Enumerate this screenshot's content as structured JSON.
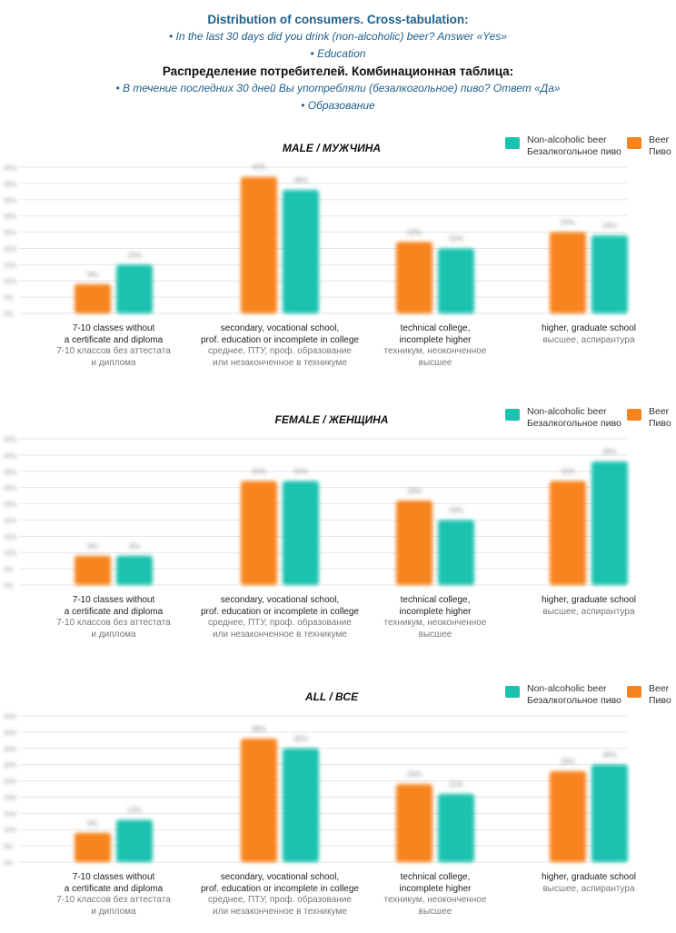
{
  "header": {
    "title_en": "Distribution of consumers. Cross-tabulation:",
    "q1_en": "• In the last 30 days did you drink (non-alcoholic) beer? Answer «Yes»",
    "q2_en": "• Education",
    "title_ru": "Распределение потребителей. Комбинационная таблица:",
    "q1_ru": "• В течение последних 30 дней Вы употребляли (безалкогольное) пиво? Ответ «Да»",
    "q2_ru": "• Образование"
  },
  "colors": {
    "beer": "#f7841e",
    "nonalc": "#1bc2b0",
    "grid": "#e6e6e6"
  },
  "legend": {
    "nonalc_en": "Non-alcoholic beer",
    "nonalc_ru": "Безалкогольное пиво",
    "beer_en": "Beer",
    "beer_ru": "Пиво"
  },
  "categories": [
    {
      "en1": "7-10 classes without",
      "en2": "a certificate and diploma",
      "ru1": "7-10 классов без аттестата",
      "ru2": "и диплома"
    },
    {
      "en1": "secondary, vocational school,",
      "en2": "prof. education or incomplete in college",
      "ru1": "среднее, ПТУ, проф. образование",
      "ru2": "или незаконченное в техникуме"
    },
    {
      "en1": "technical college,",
      "en2": "incomplete higher",
      "ru1": "техникум, неоконченное",
      "ru2": "высшее"
    },
    {
      "en1": "higher, graduate school",
      "en2": "",
      "ru1": "высшее, аспирантура",
      "ru2": ""
    }
  ],
  "chart_data": [
    {
      "type": "bar",
      "title": "MALE / МУЖЧИНА",
      "categories": [
        "7-10 classes without a certificate and diploma",
        "secondary, vocational school, prof. education or incomplete in college",
        "technical college, incomplete higher",
        "higher, graduate school"
      ],
      "series": [
        {
          "name": "Beer / Пиво",
          "values": [
            9,
            42,
            22,
            25
          ]
        },
        {
          "name": "Non-alcoholic beer / Безалкогольное пиво",
          "values": [
            15,
            38,
            20,
            24
          ]
        }
      ],
      "ylim": [
        0,
        45
      ],
      "ticks": [
        "0%",
        "5%",
        "10%",
        "15%",
        "20%",
        "25%",
        "30%",
        "35%",
        "40%",
        "45%"
      ],
      "grid": true
    },
    {
      "type": "bar",
      "title": "FEMALE / ЖЕНЩИНА",
      "categories": [
        "7-10 classes without a certificate and diploma",
        "secondary, vocational school, prof. education or incomplete in college",
        "technical college, incomplete higher",
        "higher, graduate school"
      ],
      "series": [
        {
          "name": "Beer / Пиво",
          "values": [
            9,
            32,
            26,
            32
          ]
        },
        {
          "name": "Non-alcoholic beer / Безалкогольное пиво",
          "values": [
            9,
            32,
            20,
            38
          ]
        }
      ],
      "ylim": [
        0,
        45
      ],
      "ticks": [
        "0%",
        "5%",
        "10%",
        "15%",
        "20%",
        "25%",
        "30%",
        "35%",
        "40%",
        "45%"
      ],
      "grid": true
    },
    {
      "type": "bar",
      "title": "ALL / ВСЕ",
      "categories": [
        "7-10 classes without a certificate and diploma",
        "secondary, vocational school, prof. education or incomplete in college",
        "technical college, incomplete higher",
        "higher, graduate school"
      ],
      "series": [
        {
          "name": "Beer / Пиво",
          "values": [
            9,
            38,
            24,
            28
          ]
        },
        {
          "name": "Non-alcoholic beer / Безалкогольное пиво",
          "values": [
            13,
            35,
            21,
            30
          ]
        }
      ],
      "ylim": [
        0,
        45
      ],
      "ticks": [
        "0%",
        "5%",
        "10%",
        "15%",
        "20%",
        "25%",
        "30%",
        "35%",
        "40%",
        "45%"
      ],
      "grid": true
    }
  ]
}
